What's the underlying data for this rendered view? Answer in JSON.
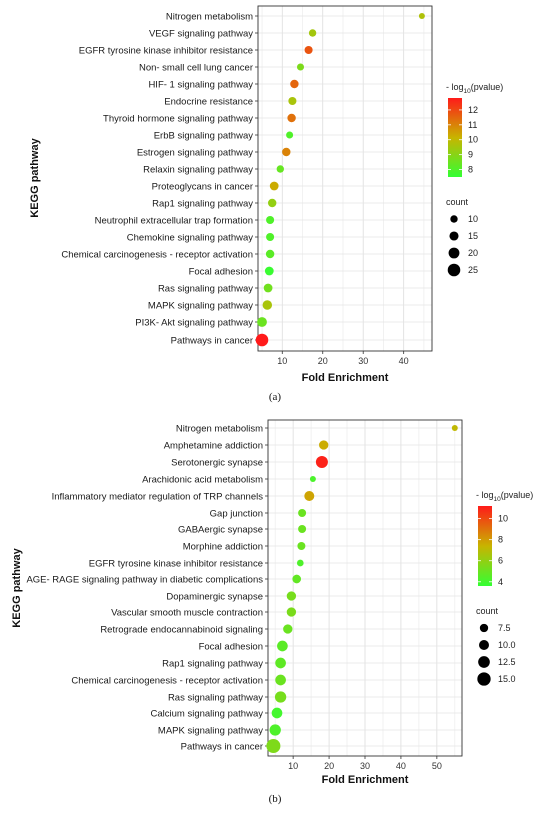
{
  "chart_data": [
    {
      "type": "scatter",
      "panel_label": "(a)",
      "xlabel": "Fold Enrichment",
      "ylabel": "KEGG pathway",
      "xlim": [
        4,
        47
      ],
      "xticks": [
        10,
        20,
        30,
        40
      ],
      "grid": true,
      "legend_position": "right",
      "color_legend": {
        "title_prefix": "- log",
        "title_sub": "10",
        "title_suffix": "(pvalue)",
        "min": 7.5,
        "max": 12.8,
        "ticks": [
          8,
          9,
          10,
          11,
          12
        ],
        "low_color": "#33ff33",
        "mid_color": "#c8b400",
        "high_color": "#ff1a1a"
      },
      "size_legend": {
        "title": "count",
        "values": [
          10,
          15,
          20,
          25
        ],
        "min": 6,
        "max": 28
      },
      "categories": [
        "Nitrogen metabolism",
        "VEGF signaling pathway",
        "EGFR tyrosine kinase inhibitor resistance",
        "Non- small cell lung cancer",
        "HIF- 1 signaling pathway",
        "Endocrine resistance",
        "Thyroid hormone signaling pathway",
        "ErbB signaling pathway",
        "Estrogen signaling pathway",
        "Relaxin signaling pathway",
        "Proteoglycans in cancer",
        "Rap1 signaling pathway",
        "Neutrophil extracellular trap formation",
        "Chemokine signaling pathway",
        "Chemical carcinogenesis -  receptor activation",
        "Focal adhesion",
        "Ras signaling pathway",
        "MAPK signaling pathway",
        "PI3K- Akt signaling pathway",
        "Pathways in cancer"
      ],
      "fold_enrichment": [
        44.5,
        17.5,
        16.5,
        14.5,
        13.0,
        12.5,
        12.3,
        11.8,
        11.0,
        9.5,
        8.0,
        7.5,
        7.0,
        7.0,
        7.0,
        6.8,
        6.5,
        6.3,
        5.0,
        5.0
      ],
      "neg_log10_pvalue": [
        9.7,
        9.5,
        11.8,
        8.8,
        11.5,
        9.6,
        11.3,
        8.0,
        11.0,
        8.4,
        10.3,
        9.2,
        8.0,
        8.0,
        8.2,
        7.6,
        8.6,
        9.6,
        8.5,
        12.8
      ],
      "count": [
        6,
        10,
        12,
        9,
        13,
        12,
        13,
        9,
        13,
        10,
        14,
        13,
        12,
        12,
        13,
        14,
        14,
        16,
        17,
        25
      ]
    },
    {
      "type": "scatter",
      "panel_label": "(b)",
      "xlabel": "Fold Enrichment",
      "ylabel": "KEGG pathway",
      "xlim": [
        3,
        57
      ],
      "xticks": [
        10,
        20,
        30,
        40,
        50
      ],
      "grid": true,
      "legend_position": "right",
      "color_legend": {
        "title_prefix": "- log",
        "title_sub": "10",
        "title_suffix": "(pvalue)",
        "min": 3.6,
        "max": 11.2,
        "ticks": [
          4,
          6,
          8,
          10
        ],
        "low_color": "#33ff33",
        "mid_color": "#c8b400",
        "high_color": "#ff1a1a"
      },
      "size_legend": {
        "title": "count",
        "values": [
          7.5,
          10.0,
          12.5,
          15.0
        ],
        "labels": [
          "7.5",
          "10.0",
          "12.5",
          "15.0"
        ],
        "min": 4,
        "max": 16
      },
      "categories": [
        "Nitrogen metabolism",
        "Amphetamine addiction",
        "Serotonergic synapse",
        "Arachidonic acid metabolism",
        "Inflammatory mediator regulation of TRP channels",
        "Gap junction",
        "GABAergic synapse",
        "Morphine addiction",
        "EGFR tyrosine kinase inhibitor resistance",
        "AGE- RAGE signaling pathway in diabetic complications",
        "Dopaminergic synapse",
        "Vascular smooth muscle contraction",
        "Retrograde endocannabinoid signaling",
        "Focal adhesion",
        "Rap1 signaling pathway",
        "Chemical carcinogenesis -  receptor activation",
        "Ras signaling pathway",
        "Calcium signaling pathway",
        "MAPK signaling pathway",
        "Pathways in cancer"
      ],
      "fold_enrichment": [
        55.0,
        18.5,
        18.0,
        15.5,
        14.5,
        12.5,
        12.5,
        12.3,
        12.0,
        11.0,
        9.5,
        9.5,
        8.5,
        7.0,
        6.5,
        6.5,
        6.5,
        5.5,
        5.0,
        4.5
      ],
      "neg_log10_pvalue": [
        7.2,
        7.6,
        11.0,
        4.2,
        7.8,
        5.0,
        5.0,
        5.0,
        4.3,
        4.8,
        5.3,
        5.4,
        5.0,
        4.6,
        4.7,
        5.0,
        5.3,
        4.0,
        4.3,
        5.5
      ],
      "count": [
        4,
        9,
        13,
        4,
        10,
        7,
        7,
        7,
        5,
        8,
        9,
        9,
        9,
        11,
        11,
        11,
        12,
        11,
        12,
        16
      ]
    }
  ]
}
